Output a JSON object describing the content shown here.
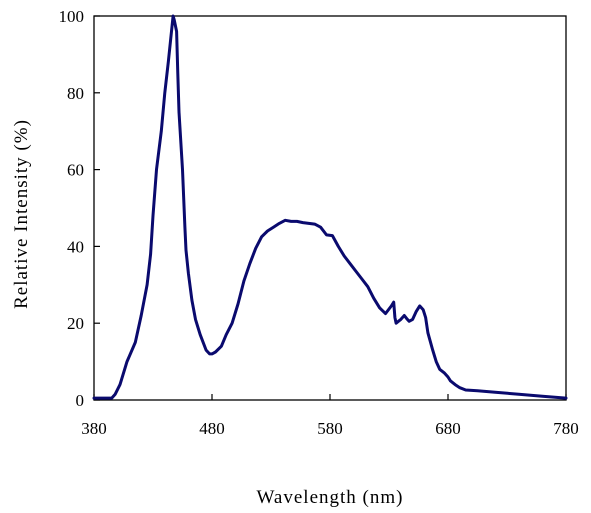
{
  "chart_data": {
    "type": "line",
    "title": "",
    "xlabel": "Wavelength (nm)",
    "ylabel": "Relative Intensity (%)",
    "xlim": [
      380,
      780
    ],
    "ylim": [
      0,
      100
    ],
    "xticks": [
      380,
      480,
      580,
      680,
      780
    ],
    "yticks": [
      0,
      20,
      40,
      60,
      80,
      100
    ],
    "xtick_labels": [
      "380",
      "480",
      "580",
      "680",
      "780"
    ],
    "ytick_labels": [
      "0",
      "20",
      "40",
      "60",
      "80",
      "100"
    ],
    "grid": false,
    "line_color": "#0a0a6e",
    "series": [
      {
        "x": [
          380,
          395,
          398,
          402,
          408,
          415,
          420,
          425,
          428,
          430,
          433,
          437,
          440,
          443,
          445,
          447,
          448,
          450,
          451,
          452,
          455,
          457,
          458,
          460,
          463,
          466,
          470,
          475,
          478,
          480,
          483,
          488,
          492,
          497,
          502,
          507,
          512,
          517,
          522,
          527,
          532,
          537,
          542,
          547,
          552,
          557,
          562,
          567,
          572,
          577,
          582,
          587,
          592,
          597,
          602,
          607,
          612,
          617,
          622,
          627,
          632,
          634,
          635,
          636,
          638,
          640,
          643,
          645,
          647,
          650,
          653,
          656,
          659,
          661,
          663,
          667,
          670,
          673,
          677,
          680,
          682,
          686,
          690,
          695,
          700,
          705,
          710,
          720,
          740,
          760,
          780
        ],
        "y": [
          0.5,
          0.5,
          1.5,
          4,
          10,
          15,
          22,
          30,
          38,
          48,
          60,
          70,
          80,
          88,
          94,
          100,
          99,
          96,
          85,
          75,
          60,
          45,
          39,
          33,
          26,
          21,
          17,
          13,
          12,
          12,
          12.5,
          14,
          17,
          20,
          25,
          31,
          35.5,
          39.5,
          42.5,
          44,
          45,
          46,
          46.8,
          46.5,
          46.5,
          46.2,
          46,
          45.8,
          45,
          43,
          42.8,
          40,
          37.5,
          35.5,
          33.5,
          31.5,
          29.5,
          26.5,
          24,
          22.5,
          24.5,
          25.5,
          21.5,
          20,
          20.5,
          21,
          22,
          21.2,
          20.5,
          21,
          23,
          24.5,
          23.5,
          21.5,
          17.5,
          13,
          10,
          8,
          7,
          6,
          5,
          4,
          3.2,
          2.6,
          2.5,
          2.4,
          2.3,
          2,
          1.5,
          1,
          0.5
        ]
      }
    ]
  }
}
